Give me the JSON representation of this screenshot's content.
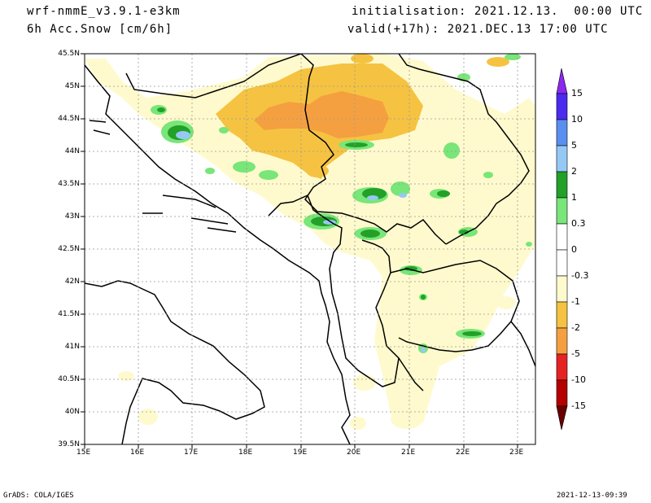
{
  "header": {
    "model": "wrf-nmmE_v3.9.1-e3km",
    "field": "6h Acc.Snow [cm/6h]",
    "init": "initialisation: 2021.12.13.  00:00 UTC",
    "valid": "valid(+17h): 2021.DEC.13 17:00 UTC"
  },
  "footer": {
    "left": "GrADS: COLA/IGES",
    "right": "2021-12-13-09:39"
  },
  "axes": {
    "lat_labels": [
      "45.5N",
      "45N",
      "44.5N",
      "44N",
      "43.5N",
      "43N",
      "42.5N",
      "42N",
      "41.5N",
      "41N",
      "40.5N",
      "40N",
      "39.5N"
    ],
    "lon_labels": [
      "15E",
      "16E",
      "17E",
      "18E",
      "19E",
      "20E",
      "21E",
      "22E",
      "23E"
    ]
  },
  "legend": {
    "labels": [
      "15",
      "10",
      "5",
      "2",
      "1",
      "0.3",
      "0",
      "-0.3",
      "-1",
      "-2",
      "-5",
      "-10",
      "-15"
    ],
    "colors": [
      "#4b2bf0",
      "#5a8ef0",
      "#96c8f5",
      "#23a028",
      "#78e678",
      "#ffffff",
      "#ffffff",
      "#fffacd",
      "#f5c341",
      "#f5a040",
      "#e62323",
      "#b40000",
      "#7a0000"
    ],
    "arrow_top_color": "#8c28f0",
    "arrow_bottom_color": "#6a0000"
  },
  "field_colors": {
    "trace": "#fffacd",
    "light": "#f5c341",
    "moderate": "#f5a040",
    "green_light": "#78e678",
    "green": "#23a028",
    "blue_light": "#96c8f5"
  }
}
